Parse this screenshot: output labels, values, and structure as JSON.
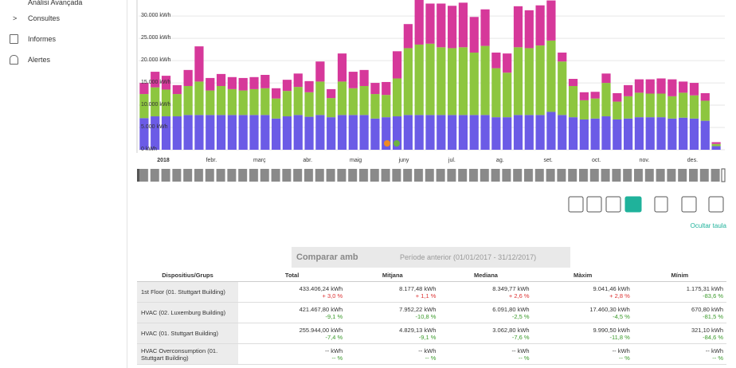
{
  "sidebar": {
    "items": [
      "Anàlisi Avançada",
      "Consultes",
      "Informes",
      "Alertes"
    ]
  },
  "chart_data": {
    "type": "bar",
    "stacked": true,
    "grid": true,
    "ylim": [
      0,
      33600
    ],
    "yticks": [
      {
        "value": 0,
        "label": "0 kWh"
      },
      {
        "value": 5000,
        "label": "5.000 kWh"
      },
      {
        "value": 10000,
        "label": "10.000 kWh"
      },
      {
        "value": 15000,
        "label": "15.000 kWh"
      },
      {
        "value": 20000,
        "label": "20.000 kWh"
      },
      {
        "value": 25000,
        "label": "25.000 kWh"
      },
      {
        "value": 30000,
        "label": "30.000 kWh"
      }
    ],
    "xlabels": [
      "2018",
      "febr.",
      "març",
      "abr.",
      "maig",
      "juny",
      "jul.",
      "ag.",
      "set.",
      "oct.",
      "nov.",
      "des."
    ],
    "series": [
      {
        "color": "#6b5be6",
        "values": [
          7100,
          7500,
          7500,
          7500,
          7800,
          7800,
          7800,
          7800,
          7800,
          7800,
          7800,
          7800,
          7000,
          7500,
          7800,
          7400,
          7800,
          7300,
          7800,
          7800,
          7800,
          7000,
          7300,
          7500,
          7800,
          7800,
          7800,
          7800,
          7800,
          7800,
          7800,
          7800,
          7300,
          7300,
          7800,
          7800,
          7800,
          8500,
          7800,
          7300,
          6800,
          7000,
          7500,
          6800,
          7000,
          7300,
          7300,
          7300,
          7000,
          7200,
          7000,
          6500,
          800
        ]
      },
      {
        "color": "#8dc63f",
        "values": [
          5400,
          6500,
          6000,
          5000,
          6500,
          7500,
          5500,
          6500,
          5800,
          5500,
          5800,
          6000,
          4500,
          5700,
          6300,
          5500,
          7500,
          4300,
          7500,
          6000,
          6500,
          5500,
          5000,
          8500,
          15000,
          15800,
          16000,
          15200,
          15000,
          15200,
          14000,
          15500,
          11000,
          10000,
          15200,
          15000,
          15600,
          16000,
          12000,
          7000,
          4300,
          4500,
          7500,
          4000,
          5000,
          5500,
          5300,
          5300,
          5000,
          5600,
          5200,
          4500,
          500
        ]
      },
      {
        "color": "#d6389a",
        "values": [
          2500,
          3500,
          3100,
          2000,
          3600,
          7900,
          2800,
          2700,
          2700,
          2800,
          2700,
          3000,
          2300,
          2500,
          3000,
          2500,
          4500,
          2000,
          6300,
          3700,
          3600,
          2500,
          2900,
          6100,
          5400,
          10000,
          9000,
          9800,
          9500,
          10000,
          8000,
          8200,
          3500,
          4300,
          9200,
          8500,
          9000,
          9000,
          2000,
          1600,
          1800,
          1500,
          2100,
          1900,
          2500,
          3000,
          3200,
          3400,
          3800,
          2500,
          2800,
          1700,
          400
        ]
      }
    ]
  },
  "toolbar": {
    "hide_table": "Ocultar taula"
  },
  "compare": {
    "label": "Comparar amb",
    "period": "Període anterior (01/01/2017 - 31/12/2017)"
  },
  "table": {
    "columns": [
      "Dispositius/Grups",
      "Total",
      "Mitjana",
      "Mediana",
      "Màxim",
      "Mínim"
    ],
    "rows": [
      {
        "name": "1st Floor (01. Stuttgart Building)",
        "cells": [
          {
            "value": "433.406,24 kWh",
            "change": "+ 3,0 %"
          },
          {
            "value": "8.177,48 kWh",
            "change": "+ 1,1 %"
          },
          {
            "value": "8.349,77 kWh",
            "change": "+ 2,6 %"
          },
          {
            "value": "9.041,46 kWh",
            "change": "+ 2,8 %"
          },
          {
            "value": "1.175,31 kWh",
            "change": "-83,6 %"
          }
        ]
      },
      {
        "name": "HVAC (02. Luxemburg Building)",
        "cells": [
          {
            "value": "421.467,80 kWh",
            "change": "-9,1 %"
          },
          {
            "value": "7.952,22 kWh",
            "change": "-10,8 %"
          },
          {
            "value": "6.091,80 kWh",
            "change": "-2,5 %"
          },
          {
            "value": "17.460,30 kWh",
            "change": "-4,5 %"
          },
          {
            "value": "670,80 kWh",
            "change": "-81,5 %"
          }
        ]
      },
      {
        "name": "HVAC (01. Stuttgart Building)",
        "cells": [
          {
            "value": "255.944,00 kWh",
            "change": "-7,4 %"
          },
          {
            "value": "4.829,13 kWh",
            "change": "-9,1 %"
          },
          {
            "value": "3.062,80 kWh",
            "change": "-7,6 %"
          },
          {
            "value": "9.990,50 kWh",
            "change": "-11,8 %"
          },
          {
            "value": "321,10 kWh",
            "change": "-84,6 %"
          }
        ]
      },
      {
        "name": "HVAC Overconsumption (01. Stuttgart Building)",
        "cells": [
          {
            "value": "-- kWh",
            "change": "-- %"
          },
          {
            "value": "-- kWh",
            "change": "-- %"
          },
          {
            "value": "-- kWh",
            "change": "-- %"
          },
          {
            "value": "-- kWh",
            "change": "-- %"
          },
          {
            "value": "-- kWh",
            "change": "-- %"
          }
        ]
      }
    ]
  }
}
